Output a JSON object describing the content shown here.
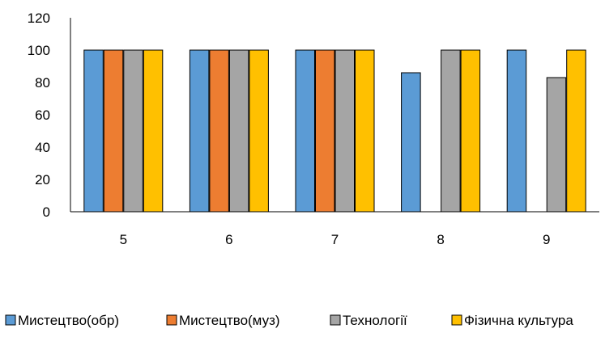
{
  "chart_data": {
    "type": "bar",
    "title": "",
    "xlabel": "",
    "ylabel": "",
    "categories": [
      "5",
      "6",
      "7",
      "8",
      "9"
    ],
    "ylim": [
      0,
      120
    ],
    "yticks": [
      "0",
      "20",
      "40",
      "60",
      "80",
      "100",
      "120"
    ],
    "grid": false,
    "legend_position": "bottom",
    "series": [
      {
        "name": "Мистецтво(обр)",
        "color": "#5B9BD5",
        "values": [
          100,
          100,
          100,
          86,
          100
        ]
      },
      {
        "name": "Мистецтво(муз)",
        "color": "#ED7D31",
        "values": [
          100,
          100,
          100,
          null,
          null
        ]
      },
      {
        "name": "Технології",
        "color": "#A5A5A5",
        "values": [
          100,
          100,
          100,
          100,
          83
        ]
      },
      {
        "name": "Фізична культура",
        "color": "#FFC000",
        "values": [
          100,
          100,
          100,
          100,
          100
        ]
      }
    ]
  }
}
